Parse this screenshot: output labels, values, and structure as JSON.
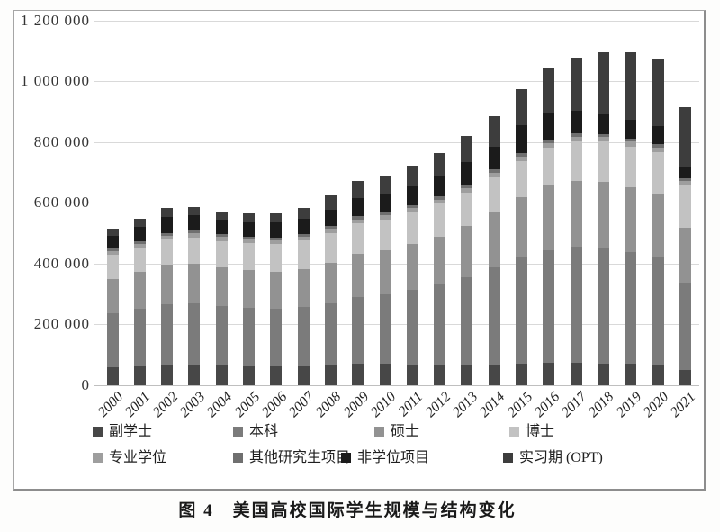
{
  "figure": {
    "caption": "图 4　美国高校国际学生规模与结构变化"
  },
  "chart_data": {
    "type": "bar",
    "stacked": true,
    "title": "",
    "xlabel": "",
    "ylabel": "",
    "grid": true,
    "legend_position": "bottom",
    "ylim": [
      0,
      1200000
    ],
    "ytick_interval": 200000,
    "ytick_labels": [
      "0",
      "200 000",
      "400 000",
      "600 000",
      "800 000",
      "1 000 000",
      "1 200 000"
    ],
    "categories": [
      "2000",
      "2001",
      "2002",
      "2003",
      "2004",
      "2005",
      "2006",
      "2007",
      "2008",
      "2009",
      "2010",
      "2011",
      "2012",
      "2013",
      "2014",
      "2015",
      "2016",
      "2017",
      "2018",
      "2019",
      "2020",
      "2021"
    ],
    "series": [
      {
        "name": "副学士",
        "color": "#474747",
        "values": [
          58000,
          62000,
          66000,
          68000,
          66000,
          63000,
          62000,
          63000,
          66000,
          70000,
          70000,
          69000,
          68000,
          68000,
          69000,
          71000,
          73000,
          73000,
          72000,
          70000,
          64000,
          51000
        ]
      },
      {
        "name": "本科",
        "color": "#7b7b7b",
        "values": [
          180000,
          190000,
          200000,
          202000,
          196000,
          192000,
          190000,
          194000,
          204000,
          221000,
          230000,
          245000,
          265000,
          288000,
          320000,
          350000,
          372000,
          382000,
          380000,
          368000,
          357000,
          288000
        ]
      },
      {
        "name": "硕士",
        "color": "#929292",
        "values": [
          112000,
          120000,
          130000,
          131000,
          126000,
          123000,
          122000,
          125000,
          133000,
          141000,
          144000,
          150000,
          157000,
          169000,
          182000,
          199000,
          213000,
          218000,
          216000,
          212000,
          208000,
          180000
        ]
      },
      {
        "name": "博士",
        "color": "#c2c2c2",
        "values": [
          78000,
          80000,
          83000,
          85000,
          87000,
          89000,
          91000,
          94000,
          97000,
          100000,
          102000,
          104000,
          107000,
          110000,
          113000,
          118000,
          124000,
          129000,
          133000,
          136000,
          138000,
          138000
        ]
      },
      {
        "name": "专业学位",
        "color": "#9e9e9e",
        "values": [
          13000,
          13000,
          13000,
          13000,
          13000,
          13000,
          13000,
          13000,
          14000,
          14000,
          14000,
          14000,
          14000,
          14000,
          15000,
          15000,
          15000,
          15000,
          15000,
          15000,
          15000,
          14000
        ]
      },
      {
        "name": "其他研究生项目",
        "color": "#6f6f6f",
        "values": [
          8000,
          8000,
          9000,
          9000,
          9000,
          9000,
          9000,
          9000,
          9000,
          10000,
          10000,
          10000,
          10000,
          10000,
          11000,
          11000,
          11000,
          11000,
          11000,
          11000,
          11000,
          10000
        ]
      },
      {
        "name": "非学位项目",
        "color": "#1b1b1b",
        "values": [
          43700,
          48900,
          53000,
          50300,
          48500,
          48000,
          48800,
          51000,
          54800,
          59600,
          59900,
          63300,
          67500,
          75600,
          76100,
          90600,
          88300,
          75100,
          64300,
          62200,
          60000,
          35000
        ]
      },
      {
        "name": "实习期 (OPT)",
        "color": "#3d3d3d",
        "values": [
          22000,
          26000,
          29000,
          28000,
          27000,
          28000,
          29000,
          34000,
          46000,
          56000,
          61000,
          68000,
          76000,
          85000,
          100000,
          120300,
          147500,
          175700,
          203500,
          221100,
          222500,
          198000
        ]
      }
    ]
  }
}
